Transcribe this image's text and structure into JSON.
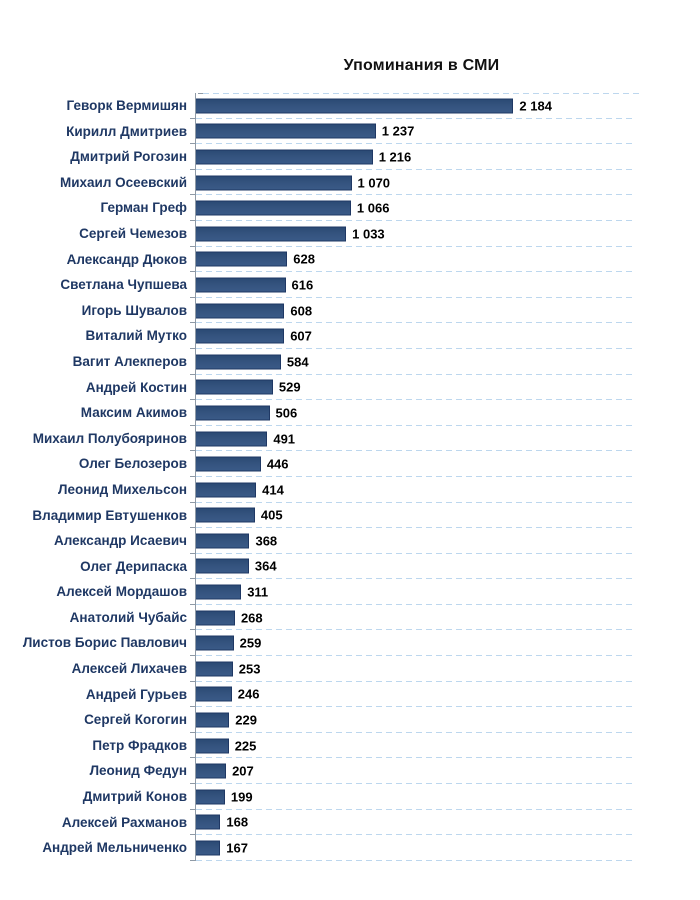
{
  "chart_data": {
    "type": "bar",
    "orientation": "horizontal",
    "title": "Упоминания в СМИ",
    "categories": [
      "Геворк Вермишян",
      "Кирилл Дмитриев",
      "Дмитрий Рогозин",
      "Михаил Осеевский",
      "Герман Греф",
      "Сергей Чемезов",
      "Александр Дюков",
      "Светлана Чупшева",
      "Игорь Шувалов",
      "Виталий Мутко",
      "Вагит Алекперов",
      "Андрей Костин",
      "Максим Акимов",
      "Михаил Полубояринов",
      "Олег Белозеров",
      "Леонид Михельсон",
      "Владимир Евтушенков",
      "Александр Исаевич",
      "Олег Дерипаска",
      "Алексей Мордашов",
      "Анатолий Чубайс",
      "Листов Борис Павлович",
      "Алексей Лихачев",
      "Андрей Гурьев",
      "Сергей Когогин",
      "Петр Фрадков",
      "Леонид Федун",
      "Дмитрий Конов",
      "Алексей Рахманов",
      "Андрей Мельниченко"
    ],
    "values": [
      2184,
      1237,
      1216,
      1070,
      1066,
      1033,
      628,
      616,
      608,
      607,
      584,
      529,
      506,
      491,
      446,
      414,
      405,
      368,
      364,
      311,
      268,
      259,
      253,
      246,
      229,
      225,
      207,
      199,
      168,
      167
    ],
    "value_labels": [
      "2 184",
      "1 237",
      "1 216",
      "1 070",
      "1 066",
      "1 033",
      "628",
      "616",
      "608",
      "607",
      "584",
      "529",
      "506",
      "491",
      "446",
      "414",
      "405",
      "368",
      "364",
      "311",
      "268",
      "259",
      "253",
      "246",
      "229",
      "225",
      "207",
      "199",
      "168",
      "167"
    ],
    "xlabel": "",
    "ylabel": "",
    "xlim": [
      0,
      3000
    ],
    "grid": "horizontal-dashed",
    "legend": "none",
    "colors": {
      "bar_fill": "#34537E",
      "bar_border": "#1F3864",
      "category_label": "#1F3864",
      "value_label": "#000000",
      "gridline": "#BDD7EE",
      "axis": "#8F9AA6",
      "title": "#111111",
      "background": "#FFFFFF"
    }
  }
}
